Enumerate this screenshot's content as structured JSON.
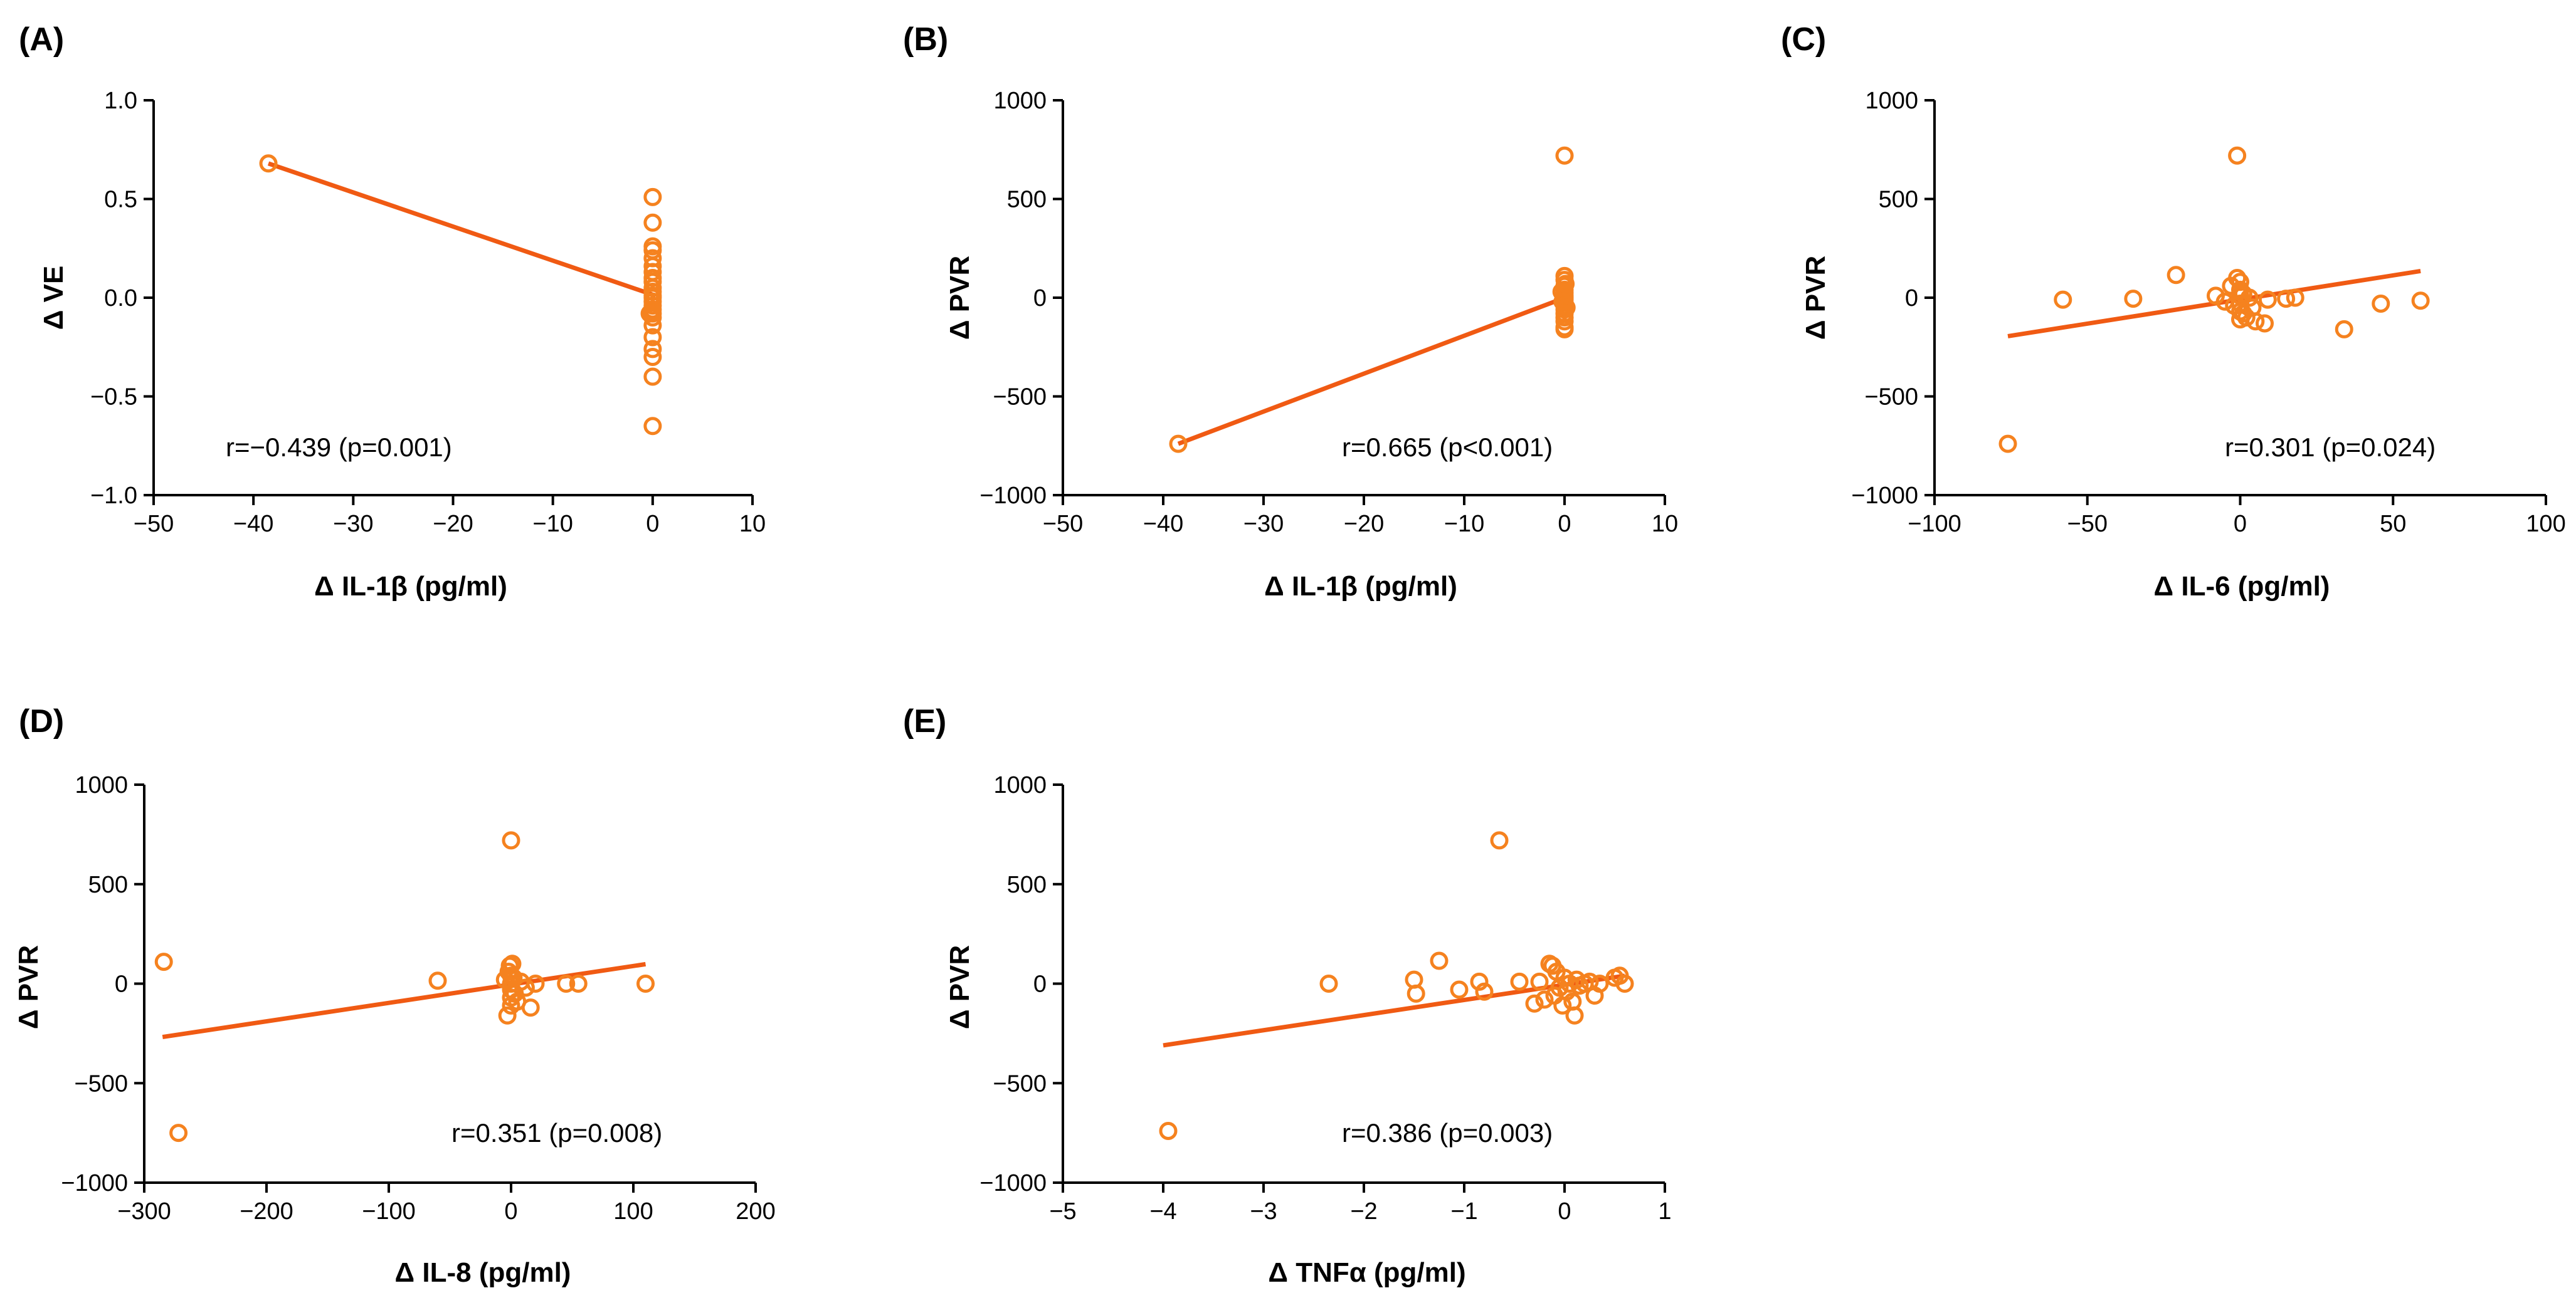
{
  "figure": {
    "layout": "2 rows x 3 columns, 5 scatter panels",
    "marker_color": "#F5821F",
    "line_color": "#F05A13"
  },
  "chart_data": [
    {
      "type": "scatter",
      "panel": "(A)",
      "xlabel": "Δ IL-1β (pg/ml)",
      "ylabel": "Δ VE",
      "xlim": [
        -50,
        10
      ],
      "ylim": [
        -1.0,
        1.0
      ],
      "xticks": [
        -50,
        -40,
        -30,
        -20,
        -10,
        0,
        10
      ],
      "xtick_labels": [
        "−50",
        "−40",
        "−30",
        "−20",
        "−10",
        "0",
        "10"
      ],
      "yticks": [
        -1.0,
        -0.5,
        0.0,
        0.5,
        1.0
      ],
      "ytick_labels": [
        "−1.0",
        "−0.5",
        "0.0",
        "0.5",
        "1.0"
      ],
      "annotation": "r=−0.439 (p=0.001)",
      "fit_line": {
        "x": [
          -38.5,
          0.3
        ],
        "y": [
          0.68,
          0.01
        ]
      },
      "points": {
        "x": [
          -38.5,
          0,
          0,
          0,
          0,
          0,
          0,
          0,
          0,
          0,
          0,
          0,
          0,
          0,
          0,
          0,
          0,
          0,
          0,
          0,
          0,
          0,
          0,
          0,
          0,
          -0.3
        ],
        "y": [
          0.68,
          0.51,
          0.38,
          0.26,
          0.24,
          0.2,
          0.16,
          0.13,
          0.1,
          0.08,
          0.05,
          0.03,
          0.01,
          0.0,
          -0.02,
          -0.04,
          -0.06,
          -0.08,
          -0.1,
          -0.14,
          -0.2,
          -0.26,
          -0.3,
          -0.4,
          -0.65,
          -0.08
        ]
      }
    },
    {
      "type": "scatter",
      "panel": "(B)",
      "xlabel": "Δ IL-1β (pg/ml)",
      "ylabel": "Δ PVR",
      "xlim": [
        -50,
        10
      ],
      "ylim": [
        -1000,
        1000
      ],
      "xticks": [
        -50,
        -40,
        -30,
        -20,
        -10,
        0,
        10
      ],
      "xtick_labels": [
        "−50",
        "−40",
        "−30",
        "−20",
        "−10",
        "0",
        "10"
      ],
      "yticks": [
        -1000,
        -500,
        0,
        500,
        1000
      ],
      "ytick_labels": [
        "−1000",
        "−500",
        "0",
        "500",
        "1000"
      ],
      "annotation": "r=0.665 (p<0.001)",
      "fit_line": {
        "x": [
          -38.5,
          0.3
        ],
        "y": [
          -740,
          5
        ]
      },
      "points": {
        "x": [
          -38.5,
          0,
          0,
          0,
          0,
          0,
          0,
          0,
          0,
          0,
          0,
          0,
          0,
          0,
          0,
          0,
          0,
          0,
          -0.3,
          0.2,
          -0.2,
          0.1
        ],
        "y": [
          -740,
          720,
          110,
          90,
          60,
          40,
          25,
          10,
          0,
          -10,
          -25,
          -40,
          -60,
          -80,
          -100,
          -120,
          -150,
          -160,
          30,
          -50,
          -20,
          70
        ]
      }
    },
    {
      "type": "scatter",
      "panel": "(C)",
      "xlabel": "Δ IL-6 (pg/ml)",
      "ylabel": "Δ PVR",
      "xlim": [
        -100,
        100
      ],
      "ylim": [
        -1000,
        1000
      ],
      "xticks": [
        -100,
        -50,
        0,
        50,
        100
      ],
      "xtick_labels": [
        "−100",
        "−50",
        "0",
        "50",
        "100"
      ],
      "yticks": [
        -1000,
        -500,
        0,
        500,
        1000
      ],
      "ytick_labels": [
        "−1000",
        "−500",
        "0",
        "500",
        "1000"
      ],
      "annotation": "r=0.301 (p=0.024)",
      "fit_line": {
        "x": [
          -76,
          59
        ],
        "y": [
          -195,
          135
        ]
      },
      "points": {
        "x": [
          -76,
          -58,
          -35,
          -21,
          -8,
          -5,
          -3,
          -2,
          -1,
          -1,
          0,
          0,
          0,
          0,
          0,
          0,
          1,
          1,
          2,
          3,
          4,
          5,
          8,
          9,
          15,
          18,
          34,
          46,
          59
        ],
        "y": [
          -740,
          -10,
          -5,
          115,
          10,
          -20,
          60,
          -40,
          720,
          100,
          80,
          40,
          10,
          -30,
          -70,
          -110,
          20,
          -80,
          -100,
          0,
          -50,
          -120,
          -130,
          -10,
          -5,
          0,
          -160,
          -30,
          -15
        ]
      }
    },
    {
      "type": "scatter",
      "panel": "(D)",
      "xlabel": "Δ IL-8 (pg/ml)",
      "ylabel": "Δ PVR",
      "xlim": [
        -300,
        200
      ],
      "ylim": [
        -1000,
        1000
      ],
      "xticks": [
        -300,
        -200,
        -100,
        0,
        100,
        200
      ],
      "xtick_labels": [
        "−300",
        "−200",
        "−100",
        "0",
        "100",
        "200"
      ],
      "yticks": [
        -1000,
        -500,
        0,
        500,
        1000
      ],
      "ytick_labels": [
        "−1000",
        "−500",
        "0",
        "500",
        "1000"
      ],
      "annotation": "r=0.351 (p=0.008)",
      "fit_line": {
        "x": [
          -285,
          110
        ],
        "y": [
          -268,
          98
        ]
      },
      "points": {
        "x": [
          -284,
          -272,
          -60,
          -5,
          -3,
          -2,
          -1,
          0,
          0,
          0,
          0,
          0,
          0,
          1,
          2,
          3,
          5,
          8,
          12,
          16,
          20,
          45,
          55,
          110
        ],
        "y": [
          110,
          -750,
          15,
          20,
          -160,
          60,
          90,
          720,
          40,
          0,
          -30,
          -70,
          -110,
          100,
          30,
          -50,
          -90,
          10,
          -20,
          -120,
          0,
          0,
          0,
          0
        ]
      }
    },
    {
      "type": "scatter",
      "panel": "(E)",
      "xlabel": "Δ TNFα (pg/ml)",
      "ylabel": "Δ PVR",
      "xlim": [
        -5,
        1
      ],
      "ylim": [
        -1000,
        1000
      ],
      "xticks": [
        -5,
        -4,
        -3,
        -2,
        -1,
        0,
        1
      ],
      "xtick_labels": [
        "−5",
        "−4",
        "−3",
        "−2",
        "−1",
        "0",
        "1"
      ],
      "yticks": [
        -1000,
        -500,
        0,
        500,
        1000
      ],
      "ytick_labels": [
        "−1000",
        "−500",
        "0",
        "500",
        "1000"
      ],
      "annotation": "r=0.386 (p=0.003)",
      "fit_line": {
        "x": [
          -4,
          0.6
        ],
        "y": [
          -310,
          40
        ]
      },
      "points": {
        "x": [
          -3.95,
          -2.35,
          -1.5,
          -1.48,
          -1.25,
          -1.05,
          -0.85,
          -0.8,
          -0.65,
          -0.45,
          -0.3,
          -0.25,
          -0.2,
          -0.15,
          -0.12,
          -0.1,
          -0.08,
          -0.05,
          -0.02,
          0.0,
          0.02,
          0.05,
          0.08,
          0.1,
          0.12,
          0.15,
          0.2,
          0.25,
          0.3,
          0.35,
          0.5,
          0.55,
          0.6
        ],
        "y": [
          -740,
          0,
          20,
          -50,
          115,
          -30,
          10,
          -40,
          720,
          10,
          -100,
          10,
          -80,
          100,
          90,
          -60,
          60,
          -20,
          -110,
          30,
          -40,
          0,
          -90,
          -160,
          20,
          -10,
          0,
          10,
          -60,
          0,
          30,
          40,
          0
        ]
      }
    }
  ]
}
